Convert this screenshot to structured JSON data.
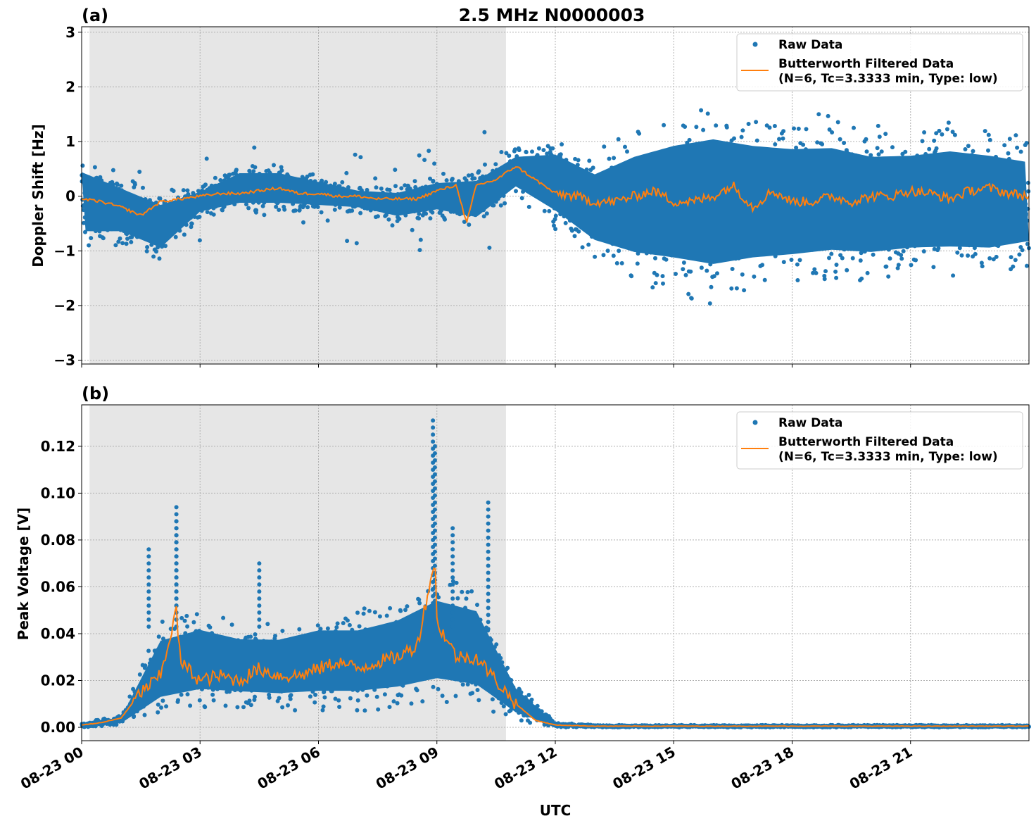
{
  "chart_data": [
    {
      "type": "scatter+line",
      "panel_label": "(a)",
      "title": "2.5 MHz N0000003",
      "xlabel": "",
      "ylabel": "Doppler Shift [Hz]",
      "xlim_hours": [
        0,
        24
      ],
      "ylim": [
        -3.07,
        3.1
      ],
      "yticks": [
        -3,
        -2,
        -1,
        0,
        1,
        2,
        3
      ],
      "ytick_labels": [
        "−3",
        "−2",
        "−1",
        "0",
        "1",
        "2",
        "3"
      ],
      "grid": true,
      "legend_position": "top-right",
      "shaded_interval_hours": [
        0.2,
        10.75
      ],
      "shade_color": "#e6e6e6",
      "series": [
        {
          "name": "Raw Data",
          "kind": "scatter",
          "color": "#1f77b4",
          "envelope_hours": [
            0,
            1,
            2,
            3,
            4,
            5,
            6,
            7,
            8,
            9,
            10,
            11,
            12,
            13,
            14,
            15,
            16,
            17,
            18,
            19,
            20,
            21,
            22,
            23,
            24
          ],
          "low": [
            -1.0,
            -0.9,
            -1.2,
            -0.4,
            -0.3,
            -0.3,
            -0.3,
            -0.3,
            -0.5,
            -0.4,
            -0.6,
            0.0,
            -0.6,
            -1.2,
            -1.6,
            -1.8,
            -2.0,
            -1.8,
            -1.7,
            -1.6,
            -1.6,
            -1.5,
            -1.5,
            -1.5,
            -1.3
          ],
          "high": [
            0.8,
            0.4,
            0.1,
            0.2,
            0.6,
            0.6,
            0.4,
            0.2,
            0.2,
            0.4,
            0.5,
            0.9,
            1.1,
            0.8,
            1.3,
            1.6,
            1.8,
            1.6,
            1.5,
            1.5,
            1.3,
            1.3,
            1.4,
            1.3,
            1.1
          ]
        },
        {
          "name": "Butterworth Filtered Data",
          "name_line2": "(N=6, Tc=3.3333 min, Type: low)",
          "kind": "line",
          "color": "#ff7f0e",
          "x_hours": [
            0,
            0.5,
            1,
            1.5,
            2,
            2.5,
            3,
            3.5,
            4,
            4.5,
            5,
            5.5,
            6,
            6.5,
            7,
            7.5,
            8,
            8.5,
            9,
            9.5,
            9.75,
            10,
            10.5,
            11,
            11.5,
            12,
            12.5,
            13,
            13.5,
            14,
            14.5,
            15,
            15.5,
            16,
            16.5,
            17,
            17.5,
            18,
            18.5,
            19,
            19.5,
            20,
            20.5,
            21,
            21.5,
            22,
            22.5,
            23,
            23.5,
            24
          ],
          "values": [
            -0.05,
            -0.1,
            -0.2,
            -0.35,
            -0.1,
            -0.05,
            0.0,
            0.05,
            0.05,
            0.1,
            0.15,
            0.05,
            0.05,
            0.0,
            0.0,
            -0.05,
            -0.05,
            -0.05,
            0.1,
            0.2,
            -0.5,
            0.2,
            0.3,
            0.55,
            0.3,
            0.05,
            0.0,
            -0.1,
            -0.1,
            0.0,
            0.1,
            -0.1,
            -0.1,
            0.0,
            0.2,
            -0.2,
            0.1,
            -0.1,
            -0.1,
            0.0,
            -0.1,
            0.0,
            0.0,
            0.1,
            0.05,
            -0.05,
            0.1,
            0.15,
            0.05,
            0.0
          ]
        }
      ]
    },
    {
      "type": "scatter+line",
      "panel_label": "(b)",
      "title": "",
      "xlabel": "UTC",
      "ylabel": "Peak Voltage [V]",
      "xlim_hours": [
        0,
        24
      ],
      "ylim": [
        -0.0057,
        0.1377
      ],
      "yticks": [
        0,
        0.02,
        0.04,
        0.06,
        0.08,
        0.1,
        0.12
      ],
      "ytick_labels": [
        "0.00",
        "0.02",
        "0.04",
        "0.06",
        "0.08",
        "0.10",
        "0.12"
      ],
      "xticks_hours": [
        0,
        3,
        6,
        9,
        12,
        15,
        18,
        21
      ],
      "xtick_labels": [
        "08-23 00",
        "08-23 03",
        "08-23 06",
        "08-23 09",
        "08-23 12",
        "08-23 15",
        "08-23 18",
        "08-23 21"
      ],
      "grid": true,
      "legend_position": "top-right",
      "shaded_interval_hours": [
        0.2,
        10.75
      ],
      "shade_color": "#e6e6e6",
      "series": [
        {
          "name": "Raw Data",
          "kind": "scatter",
          "color": "#1f77b4",
          "envelope_hours": [
            0,
            1,
            2,
            3,
            4,
            5,
            6,
            7,
            8,
            9,
            10,
            11,
            12,
            13,
            14,
            15,
            16,
            17,
            18,
            19,
            20,
            21,
            22,
            23,
            24
          ],
          "low": [
            0,
            0.001,
            0.005,
            0.008,
            0.008,
            0.007,
            0.007,
            0.007,
            0.008,
            0.01,
            0.008,
            0.003,
            0,
            0,
            0,
            0,
            0,
            0,
            0,
            0,
            0,
            0,
            0,
            0,
            0
          ],
          "high": [
            0.002,
            0.005,
            0.045,
            0.05,
            0.045,
            0.045,
            0.05,
            0.05,
            0.055,
            0.065,
            0.06,
            0.02,
            0.002,
            0.001,
            0.001,
            0.001,
            0.001,
            0.001,
            0.001,
            0.001,
            0.001,
            0.001,
            0.001,
            0.001,
            0.001
          ],
          "peaks_hours": [
            1.7,
            2.4,
            2.4,
            4.5,
            8.9,
            8.95,
            9.4,
            10.3
          ],
          "peaks_values": [
            0.076,
            0.094,
            0.088,
            0.07,
            0.131,
            0.12,
            0.085,
            0.096
          ]
        },
        {
          "name": "Butterworth Filtered Data",
          "name_line2": "(N=6, Tc=3.3333 min, Type: low)",
          "kind": "line",
          "color": "#ff7f0e",
          "x_hours": [
            0,
            0.5,
            1,
            1.5,
            2,
            2.4,
            2.5,
            3,
            3.5,
            4,
            4.5,
            5,
            5.5,
            6,
            6.5,
            7,
            7.5,
            8,
            8.5,
            8.95,
            9,
            9.5,
            10,
            10.5,
            11,
            11.5,
            12,
            13,
            24
          ],
          "values": [
            0.001,
            0.002,
            0.004,
            0.015,
            0.022,
            0.05,
            0.028,
            0.02,
            0.022,
            0.02,
            0.025,
            0.022,
            0.022,
            0.025,
            0.028,
            0.025,
            0.028,
            0.03,
            0.035,
            0.072,
            0.045,
            0.03,
            0.03,
            0.02,
            0.01,
            0.003,
            0.001,
            0.0005,
            0.0005
          ]
        }
      ]
    }
  ]
}
